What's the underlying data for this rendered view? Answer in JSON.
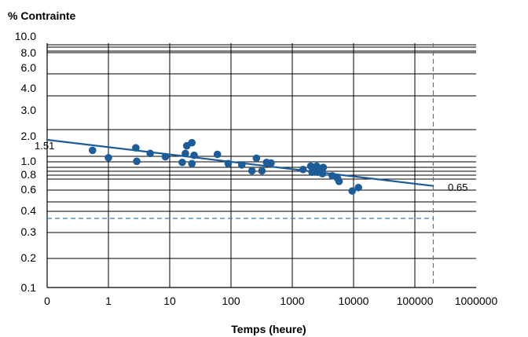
{
  "chart_data": {
    "type": "scatter",
    "ylabel": "% Contrainte",
    "xlabel": "Temps (heure)",
    "x_scale": "log",
    "grid": true,
    "x_ticks": [
      "0",
      "1",
      "10",
      "100",
      "1000",
      "10000",
      "100000",
      "1000000"
    ],
    "y_ticks": [
      "10.0",
      "8.0",
      "6.0",
      "4.0",
      "3.0",
      "2.0",
      "1.0",
      "0.8",
      "0.6",
      "0.4",
      "0.3",
      "0.2",
      "0.1"
    ],
    "points": [
      {
        "x": 0.55,
        "y": 1.24
      },
      {
        "x": 1.0,
        "y": 1.08
      },
      {
        "x": 2.8,
        "y": 1.3
      },
      {
        "x": 2.9,
        "y": 1.01
      },
      {
        "x": 4.8,
        "y": 1.17
      },
      {
        "x": 8.5,
        "y": 1.1
      },
      {
        "x": 16,
        "y": 0.99
      },
      {
        "x": 18,
        "y": 1.17
      },
      {
        "x": 19,
        "y": 1.35
      },
      {
        "x": 23,
        "y": 1.43
      },
      {
        "x": 23,
        "y": 0.97
      },
      {
        "x": 25,
        "y": 1.13
      },
      {
        "x": 60,
        "y": 1.15
      },
      {
        "x": 90,
        "y": 0.97
      },
      {
        "x": 150,
        "y": 0.95
      },
      {
        "x": 220,
        "y": 0.86
      },
      {
        "x": 260,
        "y": 1.07
      },
      {
        "x": 320,
        "y": 0.86
      },
      {
        "x": 380,
        "y": 0.99
      },
      {
        "x": 450,
        "y": 0.98
      },
      {
        "x": 1500,
        "y": 0.88
      },
      {
        "x": 2000,
        "y": 0.93
      },
      {
        "x": 2100,
        "y": 0.84
      },
      {
        "x": 2300,
        "y": 0.89
      },
      {
        "x": 2500,
        "y": 0.93
      },
      {
        "x": 2600,
        "y": 0.84
      },
      {
        "x": 3000,
        "y": 0.87
      },
      {
        "x": 3100,
        "y": 0.82
      },
      {
        "x": 3200,
        "y": 0.91
      },
      {
        "x": 4500,
        "y": 0.79
      },
      {
        "x": 5500,
        "y": 0.75
      },
      {
        "x": 5800,
        "y": 0.71
      },
      {
        "x": 9500,
        "y": 0.59
      },
      {
        "x": 12000,
        "y": 0.63
      }
    ],
    "trendline": {
      "start": {
        "x": 0.1,
        "y": 1.51
      },
      "end": {
        "x": 200000,
        "y": 0.65
      }
    },
    "annotations": {
      "start_value": "1.51",
      "end_value": "0.65"
    },
    "reference_lines": {
      "vertical_x": 200000,
      "horizontal_y": 0.35
    },
    "colors": {
      "points": "#1c5d99",
      "line": "#1c5d99",
      "reference": "#3a7bbd",
      "grid": "#000000"
    }
  }
}
